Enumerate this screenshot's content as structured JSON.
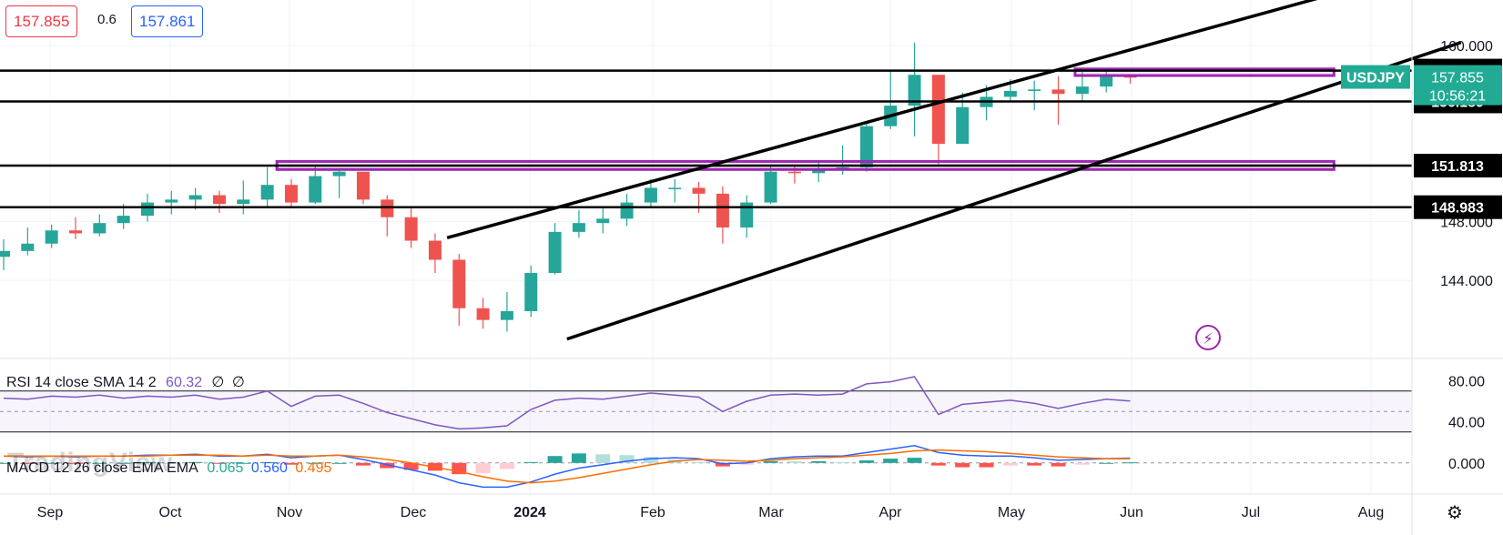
{
  "header": {
    "sell_price": "157.855",
    "spread": "0.6",
    "buy_price": "157.861"
  },
  "watermark": "TradingView",
  "chart_data": [
    {
      "type": "candlestick",
      "symbol": "USDJPY",
      "last_price": "157.855",
      "countdown": "10:56:21",
      "y_ticks": [
        "160.000",
        "148.000",
        "144.000"
      ],
      "y_tick_values": [
        160,
        148,
        144
      ],
      "x_ticks": [
        "Sep",
        "Oct",
        "Nov",
        "Dec",
        "2024",
        "Feb",
        "Mar",
        "Apr",
        "May",
        "Jun",
        "Jul",
        "Aug"
      ],
      "ylim": [
        138.8,
        162.6
      ],
      "grid": true,
      "horizontal_levels": [
        {
          "label": "158.287",
          "value": 158.287
        },
        {
          "label": "156.189",
          "value": 156.189
        },
        {
          "label": "151.813",
          "value": 151.813
        },
        {
          "label": "148.983",
          "value": 148.983
        }
      ],
      "zones": [
        {
          "from": 157.95,
          "to": 158.4,
          "start_week": 44.7,
          "end_week": 55.5,
          "color": "#9c27b0"
        },
        {
          "from": 151.55,
          "to": 152.1,
          "start_week": 11.4,
          "end_week": 55.5,
          "color": "#9c27b0"
        }
      ],
      "trend_lines": [
        {
          "x1": 18.5,
          "y1": 146.9,
          "x2": 54.8,
          "y2": 163.2
        },
        {
          "x1": 23.5,
          "y1": 140.0,
          "x2": 60.8,
          "y2": 160.2
        }
      ],
      "colors": {
        "up": "#26a69a",
        "down": "#ef5350",
        "level": "#000000",
        "zone": "#9c27b0",
        "badge": "#22ab94"
      },
      "weekly_close": [
        146.0,
        146.5,
        147.4,
        147.2,
        147.9,
        148.4,
        149.3,
        149.5,
        149.8,
        149.2,
        149.5,
        150.5,
        149.3,
        151.1,
        151.4,
        149.5,
        148.3,
        146.7,
        145.4,
        142.1,
        141.3,
        141.9,
        144.5,
        147.3,
        147.9,
        148.2,
        149.3,
        150.3,
        150.3,
        149.9,
        147.6,
        149.3,
        151.4,
        151.3,
        151.5,
        151.7,
        154.5,
        155.9,
        158.0,
        153.3,
        155.8,
        156.5,
        156.9,
        157.0,
        156.7,
        157.2,
        157.9,
        157.85
      ],
      "weekly_high": [
        146.8,
        147.6,
        147.8,
        148.3,
        148.5,
        149.2,
        149.9,
        150.1,
        150.3,
        150.1,
        150.8,
        151.7,
        150.9,
        151.9,
        151.5,
        151.2,
        149.8,
        148.9,
        147.2,
        145.8,
        142.8,
        143.2,
        145.0,
        147.9,
        148.8,
        148.9,
        149.9,
        150.9,
        150.9,
        150.7,
        150.4,
        149.8,
        151.9,
        151.8,
        152.0,
        153.2,
        154.8,
        158.3,
        160.2,
        157.9,
        156.8,
        157.3,
        157.7,
        157.6,
        157.9,
        158.2,
        158.3,
        158.0
      ],
      "weekly_low": [
        144.7,
        145.7,
        146.2,
        146.8,
        147.0,
        147.5,
        148.0,
        148.5,
        148.8,
        148.6,
        148.5,
        149.0,
        148.9,
        149.2,
        149.6,
        149.2,
        147.0,
        146.2,
        144.5,
        140.9,
        140.7,
        140.5,
        141.5,
        144.4,
        146.9,
        147.2,
        147.7,
        149.0,
        149.3,
        148.6,
        146.5,
        146.9,
        149.2,
        150.6,
        150.7,
        151.2,
        151.4,
        154.3,
        153.8,
        151.9,
        153.6,
        154.9,
        156.2,
        155.6,
        154.6,
        156.2,
        156.8,
        157.4
      ]
    },
    {
      "type": "line",
      "legend": [
        "RSI",
        "14",
        "close",
        "SMA",
        "14",
        "2"
      ],
      "value": "60.32",
      "placeholders": [
        "∅",
        "∅"
      ],
      "line_color": "#7e57c2",
      "y_ticks": [
        "80.00",
        "40.00"
      ],
      "y_tick_values": [
        80,
        40
      ],
      "ylim": [
        20,
        100
      ],
      "band": [
        70,
        30
      ],
      "values": [
        63,
        62,
        65,
        64,
        66,
        63,
        65,
        64,
        66,
        62,
        64,
        70,
        55,
        65,
        66,
        58,
        49,
        43,
        37,
        33,
        34,
        36,
        52,
        61,
        63,
        62,
        65,
        68,
        66,
        64,
        50,
        60,
        66,
        67,
        66,
        67,
        77,
        79,
        84,
        47,
        57,
        59,
        61,
        58,
        53,
        58,
        62,
        60.3
      ]
    },
    {
      "type": "line",
      "legend": [
        "MACD",
        "12",
        "26",
        "close",
        "EMA",
        "EMA"
      ],
      "values_text": [
        "0.065",
        "0.560",
        "0.495"
      ],
      "value_colors": [
        "#22ab94",
        "#2962ff",
        "#ff6d00"
      ],
      "y_ticks": [
        "0.000"
      ],
      "y_tick_values": [
        0
      ],
      "ylim": [
        -3.6,
        2.4
      ],
      "macd": [
        0.8,
        0.7,
        0.8,
        0.7,
        0.8,
        0.8,
        0.9,
        0.9,
        1.0,
        0.8,
        0.8,
        1.0,
        0.6,
        0.8,
        0.9,
        0.4,
        -0.2,
        -0.8,
        -1.4,
        -2.3,
        -2.8,
        -2.8,
        -2.2,
        -1.3,
        -0.6,
        -0.2,
        0.2,
        0.5,
        0.6,
        0.5,
        -0.1,
        0.0,
        0.5,
        0.7,
        0.8,
        0.8,
        1.2,
        1.6,
        2.0,
        1.2,
        0.9,
        0.8,
        0.8,
        0.6,
        0.3,
        0.4,
        0.5,
        0.56
      ],
      "signal": [
        0.8,
        0.8,
        0.8,
        0.8,
        0.8,
        0.8,
        0.8,
        0.9,
        0.9,
        0.9,
        0.8,
        0.9,
        0.8,
        0.8,
        0.9,
        0.7,
        0.4,
        0.0,
        -0.5,
        -1.0,
        -1.6,
        -2.1,
        -2.3,
        -2.1,
        -1.7,
        -1.2,
        -0.7,
        -0.2,
        0.2,
        0.4,
        0.3,
        0.2,
        0.3,
        0.5,
        0.6,
        0.7,
        0.9,
        1.1,
        1.4,
        1.5,
        1.4,
        1.3,
        1.1,
        0.9,
        0.7,
        0.6,
        0.5,
        0.495
      ]
    }
  ]
}
